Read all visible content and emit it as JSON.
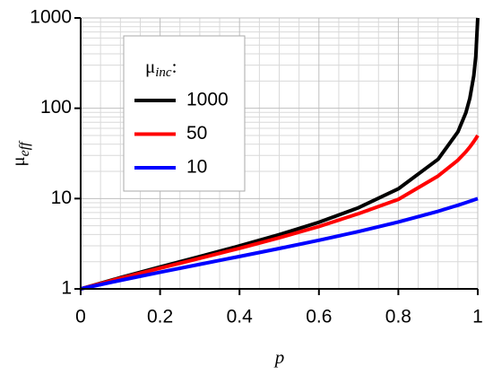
{
  "chart_data": {
    "type": "line",
    "x_label": "p",
    "y_label": {
      "symbol": "μ",
      "subscript": "eff"
    },
    "legend_title": {
      "symbol": "μ",
      "subscript": "inc",
      "suffix": ":"
    },
    "legend_position": "upper left",
    "y_scale": "log",
    "grid": true,
    "xlim": [
      0,
      1
    ],
    "ylim": [
      1,
      1000
    ],
    "xticks": [
      {
        "value": 0,
        "label": "0"
      },
      {
        "value": 0.2,
        "label": "0.2"
      },
      {
        "value": 0.4,
        "label": "0.4"
      },
      {
        "value": 0.6,
        "label": "0.6"
      },
      {
        "value": 0.8,
        "label": "0.8"
      },
      {
        "value": 1,
        "label": "1"
      }
    ],
    "yticks": [
      1,
      10,
      100,
      1000
    ],
    "x_minor_ticks": [
      0.05,
      0.1,
      0.15,
      0.25,
      0.3,
      0.35,
      0.45,
      0.5,
      0.55,
      0.65,
      0.7,
      0.75,
      0.85,
      0.9,
      0.95
    ],
    "y_minor_ticks": [
      2,
      3,
      4,
      5,
      6,
      7,
      8,
      9,
      20,
      30,
      40,
      50,
      60,
      70,
      80,
      90,
      200,
      300,
      400,
      500,
      600,
      700,
      800,
      900
    ],
    "x": [
      0,
      0.1,
      0.2,
      0.3,
      0.4,
      0.5,
      0.6,
      0.7,
      0.8,
      0.9,
      0.95,
      0.97,
      0.98,
      0.99,
      0.995,
      1
    ],
    "series": [
      {
        "name": "1000",
        "color": "#000000",
        "values": [
          1,
          1.332,
          1.747,
          2.28,
          2.99,
          3.982,
          5.466,
          7.931,
          12.82,
          27.21,
          54.77,
          89.18,
          128.8,
          229.5,
          374.4,
          1000
        ]
      },
      {
        "name": "50",
        "color": "#ff0000",
        "values": [
          1,
          1.312,
          1.697,
          2.182,
          2.815,
          3.673,
          4.903,
          6.814,
          9.79,
          17.75,
          26.62,
          32.9,
          37.2,
          42.7,
          46.08,
          50
        ]
      },
      {
        "name": "10",
        "color": "#0000ff",
        "values": [
          1,
          1.243,
          1.529,
          1.871,
          2.286,
          2.8,
          3.455,
          4.316,
          5.5,
          7.231,
          8.435,
          9.009,
          9.321,
          9.65,
          9.823,
          10
        ]
      }
    ]
  }
}
